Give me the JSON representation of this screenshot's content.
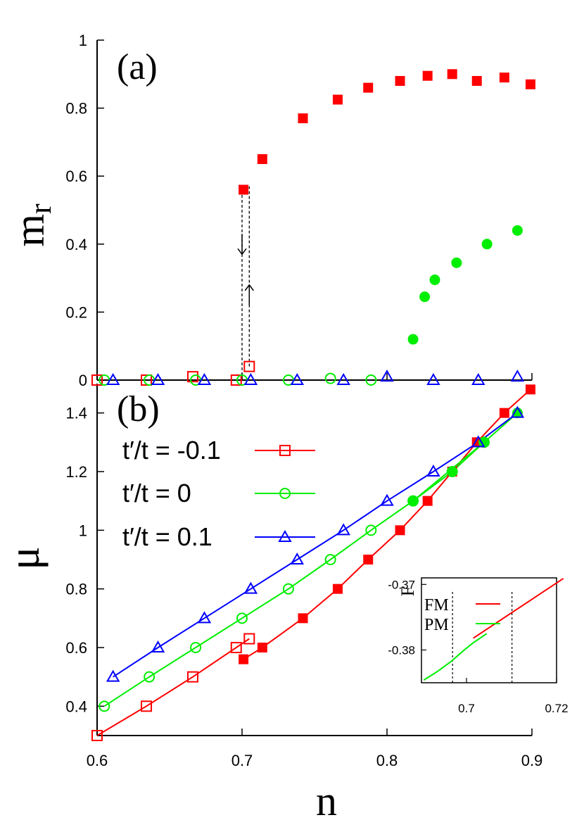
{
  "colors": {
    "red": "#ff0000",
    "green": "#00ee00",
    "blue": "#0000ff",
    "axis": "#000000"
  },
  "panel_a_label": "(a)",
  "panel_b_label": "(b)",
  "x_label": "n",
  "ya_label_main": "m",
  "ya_label_sub": "r",
  "yb_label": "μ",
  "inset_ylabel": "F",
  "legend": [
    {
      "label": "t′/t = -0.1",
      "color": "#ff0000",
      "marker": "square"
    },
    {
      "label": "t′/t =    0",
      "color": "#00ee00",
      "marker": "circle"
    },
    {
      "label": "t′/t = 0.1",
      "color": "#0000ff",
      "marker": "triangle"
    }
  ],
  "inset_legend": [
    {
      "label": "FM",
      "color": "#ff0000"
    },
    {
      "label": "PM",
      "color": "#00ee00"
    }
  ],
  "chart_data": [
    {
      "type": "scatter",
      "panel": "a",
      "xlim": [
        0.6,
        0.9
      ],
      "ylim": [
        0,
        1
      ],
      "xticks": [
        "0.6",
        "0.7",
        "0.8",
        "0.9"
      ],
      "yticks": [
        "0",
        "0.2",
        "0.4",
        "0.6",
        "0.8",
        "1"
      ],
      "series": [
        {
          "marker": "square-filled",
          "color": "#ff0000",
          "x": [
            0.701,
            0.714,
            0.742,
            0.766,
            0.787,
            0.809,
            0.828,
            0.845,
            0.862,
            0.881,
            0.899
          ],
          "y": [
            0.56,
            0.65,
            0.77,
            0.825,
            0.86,
            0.88,
            0.895,
            0.9,
            0.88,
            0.89,
            0.87
          ]
        },
        {
          "marker": "circle-filled",
          "color": "#00ee00",
          "x": [
            0.818,
            0.826,
            0.833,
            0.848,
            0.869,
            0.89
          ],
          "y": [
            0.12,
            0.245,
            0.295,
            0.345,
            0.4,
            0.44
          ]
        },
        {
          "marker": "square-open",
          "color": "#ff0000",
          "x": [
            0.6,
            0.634,
            0.666,
            0.696,
            0.705
          ],
          "y": [
            0.0,
            0.0,
            0.01,
            0.0,
            0.04
          ]
        },
        {
          "marker": "circle-open",
          "color": "#00ee00",
          "x": [
            0.605,
            0.636,
            0.668,
            0.7,
            0.732,
            0.761,
            0.789
          ],
          "y": [
            0.0,
            0.0,
            0.0,
            0.0,
            0.0,
            0.005,
            0.0
          ]
        },
        {
          "marker": "triangle-open",
          "color": "#0000ff",
          "x": [
            0.611,
            0.642,
            0.674,
            0.706,
            0.738,
            0.77,
            0.8,
            0.832,
            0.863,
            0.89
          ],
          "y": [
            0.0,
            0.0,
            0.0,
            0.0,
            0.0,
            0.0,
            0.01,
            0.0,
            0.0,
            0.01
          ]
        }
      ],
      "annotations": [
        {
          "type": "dashed-vline",
          "x": 0.7,
          "y": [
            0.0,
            0.56
          ]
        },
        {
          "type": "dashed-vline",
          "x": 0.705,
          "y": [
            0.04,
            0.57
          ]
        },
        {
          "type": "arrow-down",
          "x": 0.7,
          "y": [
            0.43,
            0.37
          ]
        },
        {
          "type": "arrow-up",
          "x": 0.705,
          "y": [
            0.22,
            0.28
          ]
        }
      ]
    },
    {
      "type": "line",
      "panel": "b",
      "xlim": [
        0.6,
        0.9
      ],
      "ylim": [
        0.3,
        1.5
      ],
      "xticks": [
        "0.6",
        "0.7",
        "0.8",
        "0.9"
      ],
      "yticks": [
        "0.4",
        "0.6",
        "0.8",
        "1",
        "1.2",
        "1.4"
      ],
      "series": [
        {
          "name": "t′/t = -0.1",
          "color": "#ff0000",
          "marker": "square-open",
          "x": [
            0.6,
            0.634,
            0.666,
            0.696,
            0.705
          ],
          "y": [
            0.3,
            0.4,
            0.5,
            0.6,
            0.63
          ]
        },
        {
          "name": "t′/t = -0.1 (FM)",
          "color": "#ff0000",
          "marker": "square-filled",
          "x": [
            0.701,
            0.714,
            0.742,
            0.766,
            0.787,
            0.809,
            0.828,
            0.845,
            0.862,
            0.881,
            0.899
          ],
          "y": [
            0.56,
            0.6,
            0.7,
            0.8,
            0.9,
            1.0,
            1.1,
            1.2,
            1.3,
            1.4,
            1.48
          ]
        },
        {
          "name": "t′/t = 0",
          "color": "#00ee00",
          "marker": "circle-open",
          "x": [
            0.605,
            0.636,
            0.668,
            0.7,
            0.732,
            0.761,
            0.789,
            0.818,
            0.845,
            0.867
          ],
          "y": [
            0.4,
            0.5,
            0.6,
            0.7,
            0.8,
            0.9,
            1.0,
            1.1,
            1.2,
            1.3
          ],
          "filled_x": [
            0.818,
            0.845,
            0.867,
            0.89
          ],
          "filled_y": [
            1.1,
            1.2,
            1.3,
            1.4
          ]
        },
        {
          "name": "t′/t = 0.1",
          "color": "#0000ff",
          "marker": "triangle-open",
          "x": [
            0.611,
            0.642,
            0.674,
            0.706,
            0.738,
            0.77,
            0.8,
            0.832,
            0.863,
            0.89
          ],
          "y": [
            0.5,
            0.6,
            0.7,
            0.8,
            0.9,
            1.0,
            1.1,
            1.2,
            1.3,
            1.4
          ]
        }
      ]
    },
    {
      "type": "line",
      "panel": "inset",
      "xlim": [
        0.69,
        0.72
      ],
      "ylim": [
        -0.385,
        -0.369
      ],
      "xticks": [
        "0.7",
        "0.72"
      ],
      "yticks": [
        "-0.37",
        "-0.38"
      ],
      "series": [
        {
          "name": "FM",
          "color": "#ff0000",
          "x": [
            0.7015,
            0.7215
          ],
          "y": [
            -0.3782,
            -0.3691
          ]
        },
        {
          "name": "PM",
          "color": "#00ee00",
          "x": [
            0.6905,
            0.6935,
            0.6965,
            0.6995,
            0.7015,
            0.7045
          ],
          "y": [
            -0.3846,
            -0.3833,
            -0.3818,
            -0.38,
            -0.3789,
            -0.3775
          ]
        }
      ],
      "annotations": [
        {
          "type": "dashed-vline",
          "x": 0.6969
        },
        {
          "type": "dashed-vline",
          "x": 0.7101
        }
      ]
    }
  ]
}
